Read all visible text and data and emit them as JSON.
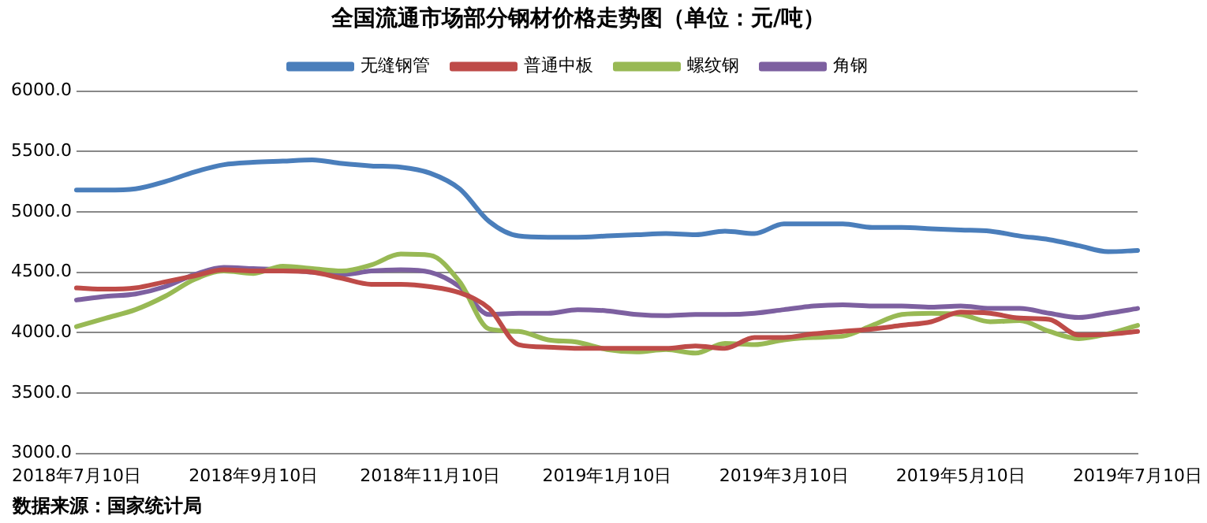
{
  "chart_data": {
    "type": "line",
    "title": "全国流通市场部分钢材价格走势图（单位：元/吨）",
    "categories": [
      "2018年7月10日",
      null,
      null,
      null,
      null,
      null,
      "2018年9月10日",
      null,
      null,
      null,
      null,
      null,
      "2018年11月10日",
      null,
      null,
      null,
      null,
      null,
      "2019年1月10日",
      null,
      null,
      null,
      null,
      null,
      "2019年3月10日",
      null,
      null,
      null,
      null,
      null,
      "2019年5月10日",
      null,
      null,
      null,
      null,
      null,
      "2019年7月10日"
    ],
    "series": [
      {
        "name": "无缝钢管",
        "color": "#4a7ebb",
        "values": [
          5180,
          5180,
          5190,
          5250,
          5330,
          5390,
          5410,
          5420,
          5430,
          5400,
          5380,
          5370,
          5320,
          5190,
          4920,
          4800,
          4790,
          4790,
          4800,
          4810,
          4820,
          4810,
          4840,
          4820,
          4900,
          4900,
          4900,
          4870,
          4870,
          4860,
          4850,
          4840,
          4800,
          4770,
          4720,
          4670,
          4680
        ]
      },
      {
        "name": "普通中板",
        "color": "#be4b48",
        "values": [
          4370,
          4360,
          4370,
          4420,
          4470,
          4520,
          4510,
          4510,
          4500,
          4450,
          4400,
          4400,
          4380,
          4330,
          4200,
          3900,
          3880,
          3870,
          3870,
          3870,
          3870,
          3890,
          3870,
          3960,
          3960,
          3990,
          4010,
          4030,
          4060,
          4090,
          4170,
          4160,
          4120,
          4110,
          3980,
          3985,
          4010
        ]
      },
      {
        "name": "螺纹钢",
        "color": "#98b954",
        "values": [
          4050,
          4120,
          4190,
          4300,
          4440,
          4510,
          4490,
          4550,
          4530,
          4510,
          4560,
          4650,
          4640,
          4420,
          4030,
          4010,
          3940,
          3920,
          3860,
          3840,
          3860,
          3830,
          3910,
          3900,
          3940,
          3960,
          3970,
          4060,
          4150,
          4160,
          4150,
          4090,
          4100,
          4010,
          3950,
          3990,
          4060
        ]
      },
      {
        "name": "角钢",
        "color": "#7d60a0",
        "values": [
          4270,
          4300,
          4320,
          4380,
          4480,
          4540,
          4530,
          4520,
          4500,
          4480,
          4510,
          4520,
          4500,
          4380,
          4150,
          4160,
          4160,
          4190,
          4180,
          4150,
          4140,
          4150,
          4150,
          4160,
          4190,
          4220,
          4230,
          4220,
          4220,
          4210,
          4220,
          4200,
          4200,
          4160,
          4125,
          4160,
          4200
        ]
      }
    ],
    "ylim": [
      3000,
      6000
    ],
    "yticks": [
      {
        "value": 3000,
        "label": "3000.0"
      },
      {
        "value": 3500,
        "label": "3500.0"
      },
      {
        "value": 4000,
        "label": "4000.0"
      },
      {
        "value": 4500,
        "label": "4500.0"
      },
      {
        "value": 5000,
        "label": "5000.0"
      },
      {
        "value": 5500,
        "label": "5500.0"
      },
      {
        "value": 6000,
        "label": "6000.0"
      }
    ],
    "grid": "y",
    "legend": "top",
    "marker": "none",
    "line_style": "solid",
    "annotations": [
      "数据来源：国家统计局"
    ]
  }
}
